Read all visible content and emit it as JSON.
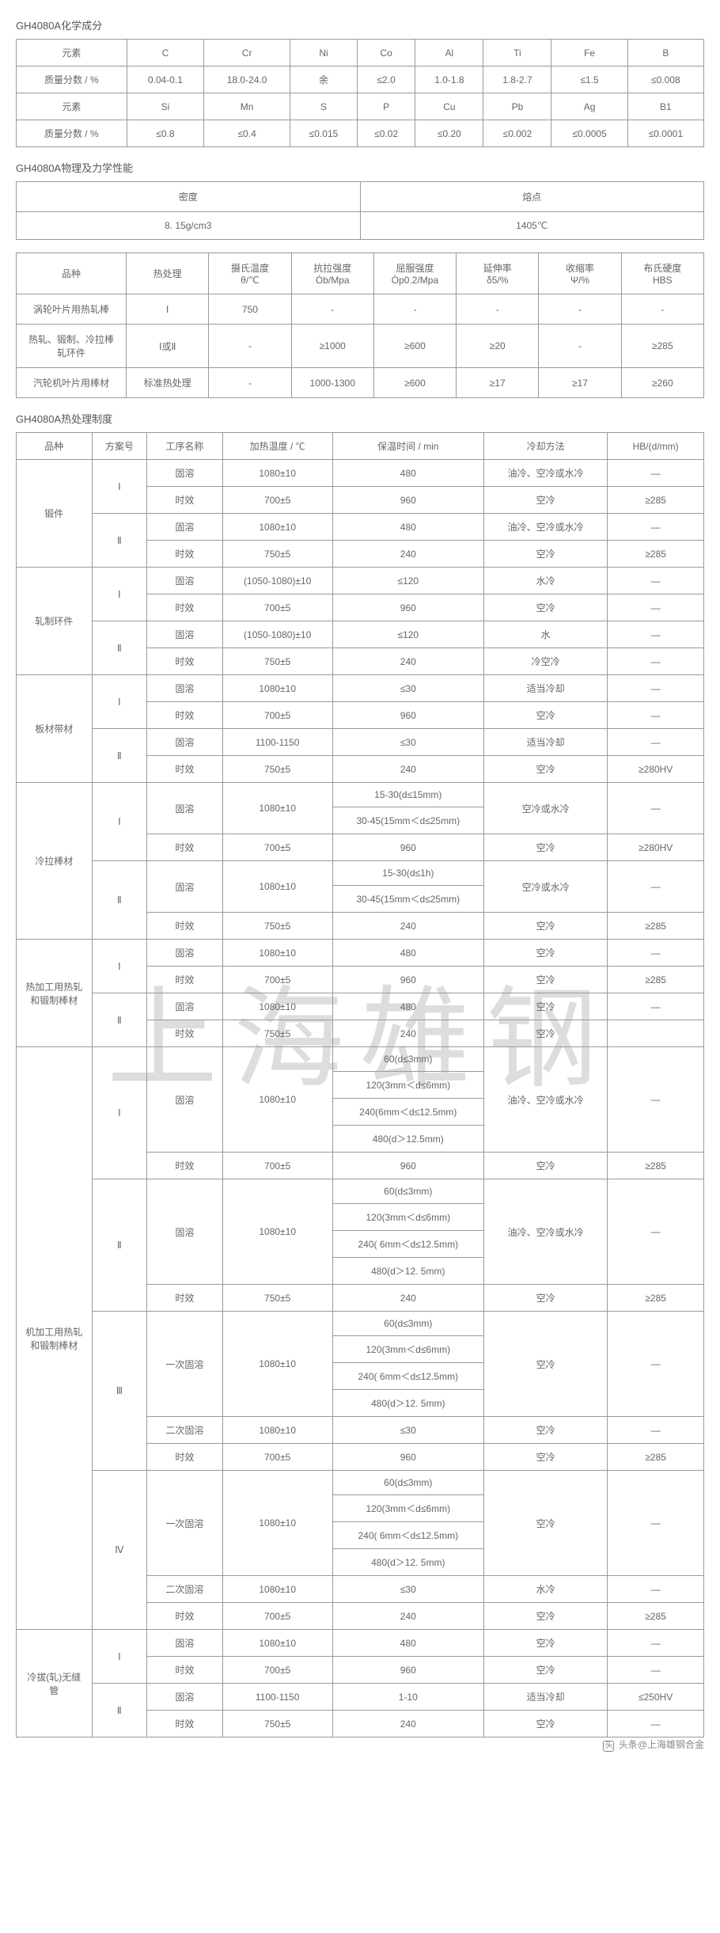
{
  "titles": {
    "t1": "GH4080A化学成分",
    "t2": "GH4080A物理及力学性能",
    "t3": "GH4080A热处理制度"
  },
  "chem": {
    "h1": "元素",
    "h2": "质量分数 / %",
    "row1": [
      "C",
      "Cr",
      "Ni",
      "Co",
      "Al",
      "Ti",
      "Fe",
      "B"
    ],
    "row1v": [
      "0.04-0.1",
      "18.0-24.0",
      "余",
      "≤2.0",
      "1.0-1.8",
      "1.8-2.7",
      "≤1.5",
      "≤0.008"
    ],
    "row2": [
      "Si",
      "Mn",
      "S",
      "P",
      "Cu",
      "Pb",
      "Ag",
      "B1"
    ],
    "row2v": [
      "≤0.8",
      "≤0.4",
      "≤0.015",
      "≤0.02",
      "≤0.20",
      "≤0.002",
      "≤0.0005",
      "≤0.0001"
    ]
  },
  "phys": {
    "h1": "密度",
    "h2": "熔点",
    "v1": "8. 15g/cm3",
    "v2": "1405℃"
  },
  "mech": {
    "h": [
      "品种",
      "热处理",
      "摄氏温度\nθ/℃",
      "抗拉强度\nÓb/Mpa",
      "屈服强度\nÓp0.2/Mpa",
      "延伸率\nδ5/%",
      "收缩率\nΨ/%",
      "布氏硬度\nHBS"
    ],
    "r1": [
      "涡轮叶片用热轧棒",
      "Ⅰ",
      "750",
      "-",
      "-",
      "-",
      "-",
      "-"
    ],
    "r2": [
      "热轧、锻制、冷拉棒\n轧环件",
      "Ⅰ或Ⅱ",
      "-",
      "≥1000",
      "≥600",
      "≥20",
      "-",
      "≥285"
    ],
    "r3": [
      "汽轮机叶片用棒材",
      "标准热处理",
      "-",
      "1000-1300",
      "≥600",
      "≥17",
      "≥17",
      "≥260"
    ]
  },
  "heat": {
    "h": [
      "品种",
      "方案号",
      "工序名称",
      "加热温度 / ℃",
      "保温时间 / min",
      "冷却方法",
      "HB/(d/mm)"
    ],
    "groups": [
      {
        "name": "锻件",
        "schemes": [
          {
            "n": "Ⅰ",
            "rows": [
              [
                "固溶",
                "1080±10",
                "480",
                "油冷、空冷或水冷",
                "—"
              ],
              [
                "时效",
                "700±5",
                "960",
                "空冷",
                "≥285"
              ]
            ]
          },
          {
            "n": "Ⅱ",
            "rows": [
              [
                "固溶",
                "1080±10",
                "480",
                "油冷、空冷或水冷",
                "—"
              ],
              [
                "时效",
                "750±5",
                "240",
                "空冷",
                "≥285"
              ]
            ]
          }
        ]
      },
      {
        "name": "轧制环件",
        "schemes": [
          {
            "n": "Ⅰ",
            "rows": [
              [
                "固溶",
                "(1050-1080)±10",
                "≤120",
                "水冷",
                "—"
              ],
              [
                "时效",
                "700±5",
                "960",
                "空冷",
                "—"
              ]
            ]
          },
          {
            "n": "Ⅱ",
            "rows": [
              [
                "固溶",
                "(1050-1080)±10",
                "≤120",
                "水",
                "—"
              ],
              [
                "时效",
                "750±5",
                "240",
                "冷空冷",
                "—"
              ]
            ]
          }
        ]
      },
      {
        "name": "板材带材",
        "schemes": [
          {
            "n": "Ⅰ",
            "rows": [
              [
                "固溶",
                "1080±10",
                "≤30",
                "适当冷却",
                "—"
              ],
              [
                "时效",
                "700±5",
                "960",
                "空冷",
                "—"
              ]
            ]
          },
          {
            "n": "Ⅱ",
            "rows": [
              [
                "固溶",
                "1100-1150",
                "≤30",
                "适当冷却",
                "—"
              ],
              [
                "时效",
                "750±5",
                "240",
                "空冷",
                "≥280HV"
              ]
            ]
          }
        ]
      }
    ],
    "lenla": {
      "name": "冷拉棒材",
      "sch1": {
        "n": "Ⅰ",
        "sol": {
          "p": "固溶",
          "t": "1080±10",
          "time": [
            "15-30(d≤15mm)",
            "30-45(15mm＜d≤25mm)"
          ],
          "cool": "空冷或水冷",
          "hb": "—"
        },
        "age": [
          "时效",
          "700±5",
          "960",
          "空冷",
          "≥280HV"
        ]
      },
      "sch2": {
        "n": "Ⅱ",
        "sol": {
          "p": "固溶",
          "t": "1080±10",
          "time": [
            "15-30(d≤1h)",
            "30-45(15mm＜d≤25mm)"
          ],
          "cool": "空冷或水冷",
          "hb": "—"
        },
        "age": [
          "时效",
          "750±5",
          "240",
          "空冷",
          "≥285"
        ]
      }
    },
    "rejia": {
      "name": "热加工用热轧\n和锻制棒材",
      "schemes": [
        {
          "n": "Ⅰ",
          "rows": [
            [
              "固溶",
              "1080±10",
              "480",
              "空冷",
              "—"
            ],
            [
              "时效",
              "700±5",
              "960",
              "空冷",
              "≥285"
            ]
          ]
        },
        {
          "n": "Ⅱ",
          "rows": [
            [
              "固溶",
              "1080±10",
              "480",
              "空冷",
              "—"
            ],
            [
              "时效",
              "750±5",
              "240",
              "空冷",
              ""
            ]
          ]
        }
      ]
    },
    "jijia": {
      "name": "机加工用热轧\n和锻制棒材",
      "sch1": {
        "n": "Ⅰ",
        "sol": {
          "p": "固溶",
          "t": "1080±10",
          "time": [
            "60(d≤3mm)",
            "120(3mm＜d≤6mm)",
            "240(6mm＜d≤12.5mm)",
            "480(d＞12.5mm)"
          ],
          "cool": "油冷、空冷或水冷",
          "hb": "—"
        },
        "age": [
          "时效",
          "700±5",
          "960",
          "空冷",
          "≥285"
        ]
      },
      "sch2": {
        "n": "Ⅱ",
        "sol": {
          "p": "固溶",
          "t": "1080±10",
          "time": [
            "60(d≤3mm)",
            "120(3mm＜d≤6mm)",
            "240( 6mm＜d≤12.5mm)",
            "480(d＞12. 5mm)"
          ],
          "cool": "油冷、空冷或水冷",
          "hb": "—"
        },
        "age": [
          "时效",
          "750±5",
          "240",
          "空冷",
          "≥285"
        ]
      },
      "sch3": {
        "n": "Ⅲ",
        "sol1": {
          "p": "一次固溶",
          "t": "1080±10",
          "time": [
            "60(d≤3mm)",
            "120(3mm＜d≤6mm)",
            "240( 6mm＜d≤12.5mm)",
            "480(d＞12. 5mm)"
          ],
          "cool": "空冷",
          "hb": "—"
        },
        "sol2": [
          "二次固溶",
          "1080±10",
          "≤30",
          "空冷",
          "—"
        ],
        "age": [
          "时效",
          "700±5",
          "960",
          "空冷",
          "≥285"
        ]
      },
      "sch4": {
        "n": "Ⅳ",
        "sol1": {
          "p": "一次固溶",
          "t": "1080±10",
          "time": [
            "60(d≤3mm)",
            "120(3mm＜d≤6mm)",
            "240( 6mm＜d≤12.5mm)",
            "480(d＞12. 5mm)"
          ],
          "cool": "空冷",
          "hb": "—"
        },
        "sol2": [
          "二次固溶",
          "1080±10",
          "≤30",
          "水冷",
          "—"
        ],
        "age": [
          "时效",
          "700±5",
          "240",
          "空冷",
          "≥285"
        ]
      }
    },
    "lengba": {
      "name": "冷拔(轧)无缝\n管",
      "schemes": [
        {
          "n": "Ⅰ",
          "rows": [
            [
              "固溶",
              "1080±10",
              "480",
              "空冷",
              "—"
            ],
            [
              "时效",
              "700±5",
              "960",
              "空冷",
              "—"
            ]
          ]
        },
        {
          "n": "Ⅱ",
          "rows": [
            [
              "固溶",
              "1100-1150",
              "1-10",
              "适当冷却",
              "≤250HV"
            ],
            [
              "时效",
              "750±5",
              "240",
              "空冷",
              "—"
            ]
          ]
        }
      ]
    }
  },
  "watermark": "上海雄钢",
  "footer": "头条@上海雄钢合金"
}
